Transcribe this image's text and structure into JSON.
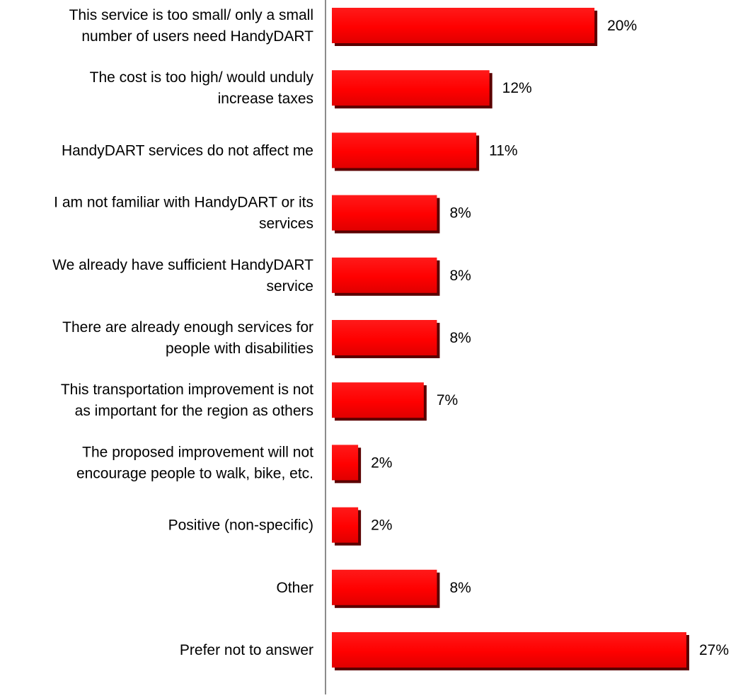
{
  "chart_data": {
    "type": "bar",
    "orientation": "horizontal",
    "title": "",
    "xlabel": "",
    "ylabel": "",
    "xlim": [
      0,
      27
    ],
    "grid": false,
    "legend": "none",
    "bar_color": "#ff0000",
    "bar_shadow_color": "#5a0000",
    "axis_color": "#8c8c8c",
    "categories": [
      [
        "This service is too small/ only a small",
        "number of users need HandyDART"
      ],
      [
        "The cost is too high/ would unduly",
        "increase taxes"
      ],
      [
        "HandyDART services do not affect me"
      ],
      [
        "I am not familiar with HandyDART or its",
        "services"
      ],
      [
        "We already have sufficient HandyDART",
        "service"
      ],
      [
        "There are already enough services for",
        "people with disabilities"
      ],
      [
        "This transportation improvement is not",
        "as important for the region as others"
      ],
      [
        "The proposed improvement will not",
        "encourage people to walk, bike, etc."
      ],
      [
        "Positive (non-specific)"
      ],
      [
        "Other"
      ],
      [
        "Prefer not to answer"
      ]
    ],
    "values": [
      20,
      12,
      11,
      8,
      8,
      8,
      7,
      2,
      2,
      8,
      27
    ],
    "value_labels": [
      "20%",
      "12%",
      "11%",
      "8%",
      "8%",
      "8%",
      "7%",
      "2%",
      "2%",
      "8%",
      "27%"
    ]
  }
}
